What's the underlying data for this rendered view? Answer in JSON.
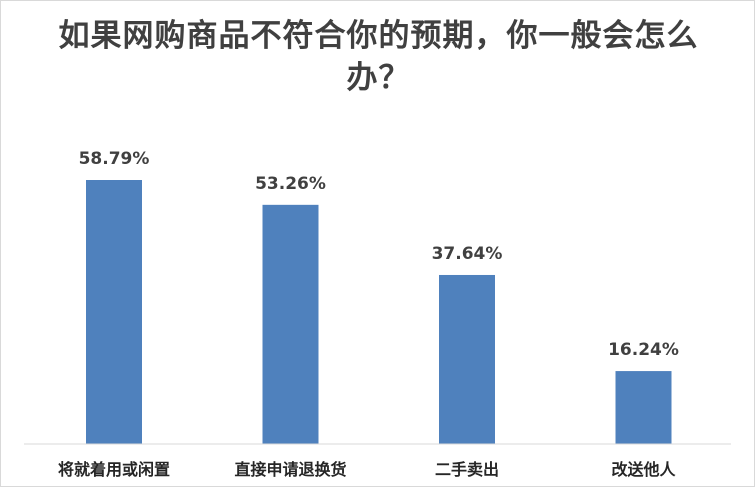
{
  "chart_data": {
    "type": "bar",
    "title": "如果网购商品不符合你的预期，你一般会怎么办？",
    "categories": [
      "将就着用或闲置",
      "直接申请退换货",
      "二手卖出",
      "改送他人"
    ],
    "values": [
      58.79,
      53.26,
      37.64,
      16.24
    ],
    "value_labels": [
      "58.79%",
      "53.26%",
      "37.64%",
      "16.24%"
    ],
    "ylim": [
      0,
      70
    ],
    "grid": false,
    "legend": "none",
    "colors": {
      "bar": "#4f81bd",
      "axis": "#d9d9d9",
      "text": "#404040"
    }
  }
}
